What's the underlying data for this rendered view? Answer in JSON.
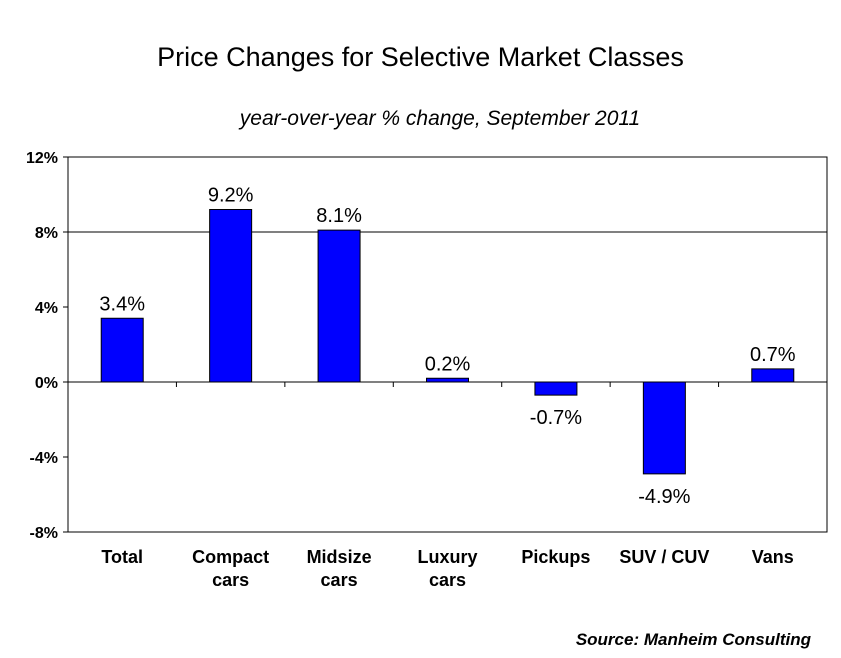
{
  "chart_data": {
    "type": "bar",
    "title": "Price Changes for Selective Market Classes",
    "subtitle": "year-over-year % change, September 2011",
    "categories": [
      [
        "Total"
      ],
      [
        "Compact",
        "cars"
      ],
      [
        "Midsize",
        "cars"
      ],
      [
        "Luxury",
        "cars"
      ],
      [
        "Pickups"
      ],
      [
        "SUV / CUV"
      ],
      [
        "Vans"
      ]
    ],
    "values": [
      3.4,
      9.2,
      8.1,
      0.2,
      -0.7,
      -4.9,
      0.7
    ],
    "data_labels": [
      "3.4%",
      "9.2%",
      "8.1%",
      "0.2%",
      "-0.7%",
      "-4.9%",
      "0.7%"
    ],
    "ylim": [
      -8,
      12
    ],
    "yticks": [
      12,
      8,
      4,
      0,
      -4,
      -8
    ],
    "ytick_labels": [
      "12%",
      "8%",
      "4%",
      "0%",
      "-4%",
      "-8%"
    ],
    "gridlines": [
      8
    ],
    "bar_color": "#0000ff",
    "legend": "none"
  },
  "source": "Source: Manheim Consulting"
}
